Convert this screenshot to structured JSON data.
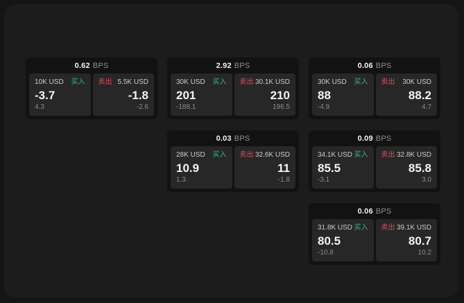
{
  "colors": {
    "outer_bg": "#151515",
    "panel_bg": "#1c1c1d",
    "card_bg": "#121213",
    "tile_bg": "#272728",
    "buy": "#35b77e",
    "sell": "#dc4a5c",
    "text_primary": "#f3f3f3",
    "text_label": "#cbcbcb",
    "text_muted": "#8f8f8f",
    "text_dim": "#8b8b8b"
  },
  "labels": {
    "bps_unit": "BPS",
    "buy": "买入",
    "sell": "卖出"
  },
  "cards": [
    {
      "row": 1,
      "col": 1,
      "bps": "0.62",
      "buy": {
        "size": "10K USD",
        "price": "-3.7",
        "change": "4.3"
      },
      "sell": {
        "size": "5.5K USD",
        "price": "-1.8",
        "change": "-2.6"
      }
    },
    {
      "row": 1,
      "col": 2,
      "bps": "2.92",
      "buy": {
        "size": "30K USD",
        "price": "201",
        "change": "-188.1"
      },
      "sell": {
        "size": "30.1K USD",
        "price": "210",
        "change": "196.5"
      }
    },
    {
      "row": 1,
      "col": 3,
      "bps": "0.06",
      "buy": {
        "size": "30K USD",
        "price": "88",
        "change": "-4.9"
      },
      "sell": {
        "size": "30K USD",
        "price": "88.2",
        "change": "4.7"
      }
    },
    {
      "row": 2,
      "col": 2,
      "bps": "0.03",
      "buy": {
        "size": "28K USD",
        "price": "10.9",
        "change": "1.3"
      },
      "sell": {
        "size": "32.6K USD",
        "price": "11",
        "change": "-1.8"
      }
    },
    {
      "row": 2,
      "col": 3,
      "bps": "0.09",
      "buy": {
        "size": "34.1K USD",
        "price": "85.5",
        "change": "-3.1"
      },
      "sell": {
        "size": "32.8K USD",
        "price": "85.8",
        "change": "3.0"
      }
    },
    {
      "row": 3,
      "col": 3,
      "bps": "0.06",
      "buy": {
        "size": "31.8K USD",
        "price": "80.5",
        "change": "-10.8"
      },
      "sell": {
        "size": "39.1K USD",
        "price": "80.7",
        "change": "10.2"
      }
    }
  ]
}
